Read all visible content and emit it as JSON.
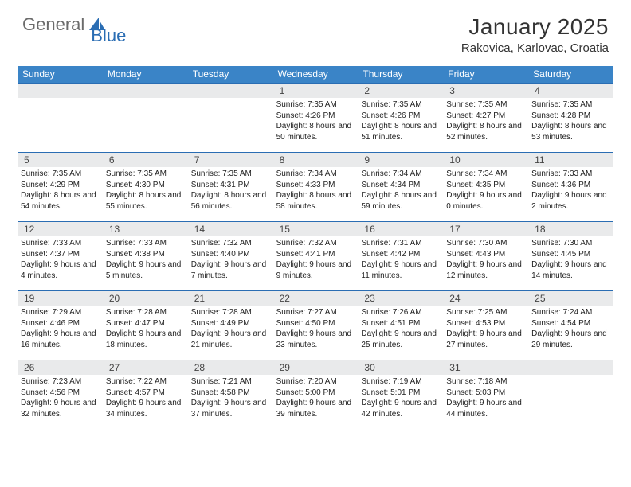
{
  "logo": {
    "part1": "General",
    "part2": "Blue"
  },
  "title": "January 2025",
  "location": "Rakovica, Karlovac, Croatia",
  "colors": {
    "header_bg": "#3a84c7",
    "week_divider": "#2a6db3",
    "daynum_bg": "#e9eaeb",
    "logo_gray": "#6b6b6b",
    "logo_blue": "#2a6db3"
  },
  "weekdays": [
    "Sunday",
    "Monday",
    "Tuesday",
    "Wednesday",
    "Thursday",
    "Friday",
    "Saturday"
  ],
  "weeks": [
    [
      {
        "empty": true
      },
      {
        "empty": true
      },
      {
        "empty": true
      },
      {
        "day": "1",
        "sunrise": "7:35 AM",
        "sunset": "4:26 PM",
        "daylight": "8 hours and 50 minutes."
      },
      {
        "day": "2",
        "sunrise": "7:35 AM",
        "sunset": "4:26 PM",
        "daylight": "8 hours and 51 minutes."
      },
      {
        "day": "3",
        "sunrise": "7:35 AM",
        "sunset": "4:27 PM",
        "daylight": "8 hours and 52 minutes."
      },
      {
        "day": "4",
        "sunrise": "7:35 AM",
        "sunset": "4:28 PM",
        "daylight": "8 hours and 53 minutes."
      }
    ],
    [
      {
        "day": "5",
        "sunrise": "7:35 AM",
        "sunset": "4:29 PM",
        "daylight": "8 hours and 54 minutes."
      },
      {
        "day": "6",
        "sunrise": "7:35 AM",
        "sunset": "4:30 PM",
        "daylight": "8 hours and 55 minutes."
      },
      {
        "day": "7",
        "sunrise": "7:35 AM",
        "sunset": "4:31 PM",
        "daylight": "8 hours and 56 minutes."
      },
      {
        "day": "8",
        "sunrise": "7:34 AM",
        "sunset": "4:33 PM",
        "daylight": "8 hours and 58 minutes."
      },
      {
        "day": "9",
        "sunrise": "7:34 AM",
        "sunset": "4:34 PM",
        "daylight": "8 hours and 59 minutes."
      },
      {
        "day": "10",
        "sunrise": "7:34 AM",
        "sunset": "4:35 PM",
        "daylight": "9 hours and 0 minutes."
      },
      {
        "day": "11",
        "sunrise": "7:33 AM",
        "sunset": "4:36 PM",
        "daylight": "9 hours and 2 minutes."
      }
    ],
    [
      {
        "day": "12",
        "sunrise": "7:33 AM",
        "sunset": "4:37 PM",
        "daylight": "9 hours and 4 minutes."
      },
      {
        "day": "13",
        "sunrise": "7:33 AM",
        "sunset": "4:38 PM",
        "daylight": "9 hours and 5 minutes."
      },
      {
        "day": "14",
        "sunrise": "7:32 AM",
        "sunset": "4:40 PM",
        "daylight": "9 hours and 7 minutes."
      },
      {
        "day": "15",
        "sunrise": "7:32 AM",
        "sunset": "4:41 PM",
        "daylight": "9 hours and 9 minutes."
      },
      {
        "day": "16",
        "sunrise": "7:31 AM",
        "sunset": "4:42 PM",
        "daylight": "9 hours and 11 minutes."
      },
      {
        "day": "17",
        "sunrise": "7:30 AM",
        "sunset": "4:43 PM",
        "daylight": "9 hours and 12 minutes."
      },
      {
        "day": "18",
        "sunrise": "7:30 AM",
        "sunset": "4:45 PM",
        "daylight": "9 hours and 14 minutes."
      }
    ],
    [
      {
        "day": "19",
        "sunrise": "7:29 AM",
        "sunset": "4:46 PM",
        "daylight": "9 hours and 16 minutes."
      },
      {
        "day": "20",
        "sunrise": "7:28 AM",
        "sunset": "4:47 PM",
        "daylight": "9 hours and 18 minutes."
      },
      {
        "day": "21",
        "sunrise": "7:28 AM",
        "sunset": "4:49 PM",
        "daylight": "9 hours and 21 minutes."
      },
      {
        "day": "22",
        "sunrise": "7:27 AM",
        "sunset": "4:50 PM",
        "daylight": "9 hours and 23 minutes."
      },
      {
        "day": "23",
        "sunrise": "7:26 AM",
        "sunset": "4:51 PM",
        "daylight": "9 hours and 25 minutes."
      },
      {
        "day": "24",
        "sunrise": "7:25 AM",
        "sunset": "4:53 PM",
        "daylight": "9 hours and 27 minutes."
      },
      {
        "day": "25",
        "sunrise": "7:24 AM",
        "sunset": "4:54 PM",
        "daylight": "9 hours and 29 minutes."
      }
    ],
    [
      {
        "day": "26",
        "sunrise": "7:23 AM",
        "sunset": "4:56 PM",
        "daylight": "9 hours and 32 minutes."
      },
      {
        "day": "27",
        "sunrise": "7:22 AM",
        "sunset": "4:57 PM",
        "daylight": "9 hours and 34 minutes."
      },
      {
        "day": "28",
        "sunrise": "7:21 AM",
        "sunset": "4:58 PM",
        "daylight": "9 hours and 37 minutes."
      },
      {
        "day": "29",
        "sunrise": "7:20 AM",
        "sunset": "5:00 PM",
        "daylight": "9 hours and 39 minutes."
      },
      {
        "day": "30",
        "sunrise": "7:19 AM",
        "sunset": "5:01 PM",
        "daylight": "9 hours and 42 minutes."
      },
      {
        "day": "31",
        "sunrise": "7:18 AM",
        "sunset": "5:03 PM",
        "daylight": "9 hours and 44 minutes."
      },
      {
        "empty": true
      }
    ]
  ],
  "labels": {
    "sunrise": "Sunrise:",
    "sunset": "Sunset:",
    "daylight": "Daylight:"
  }
}
